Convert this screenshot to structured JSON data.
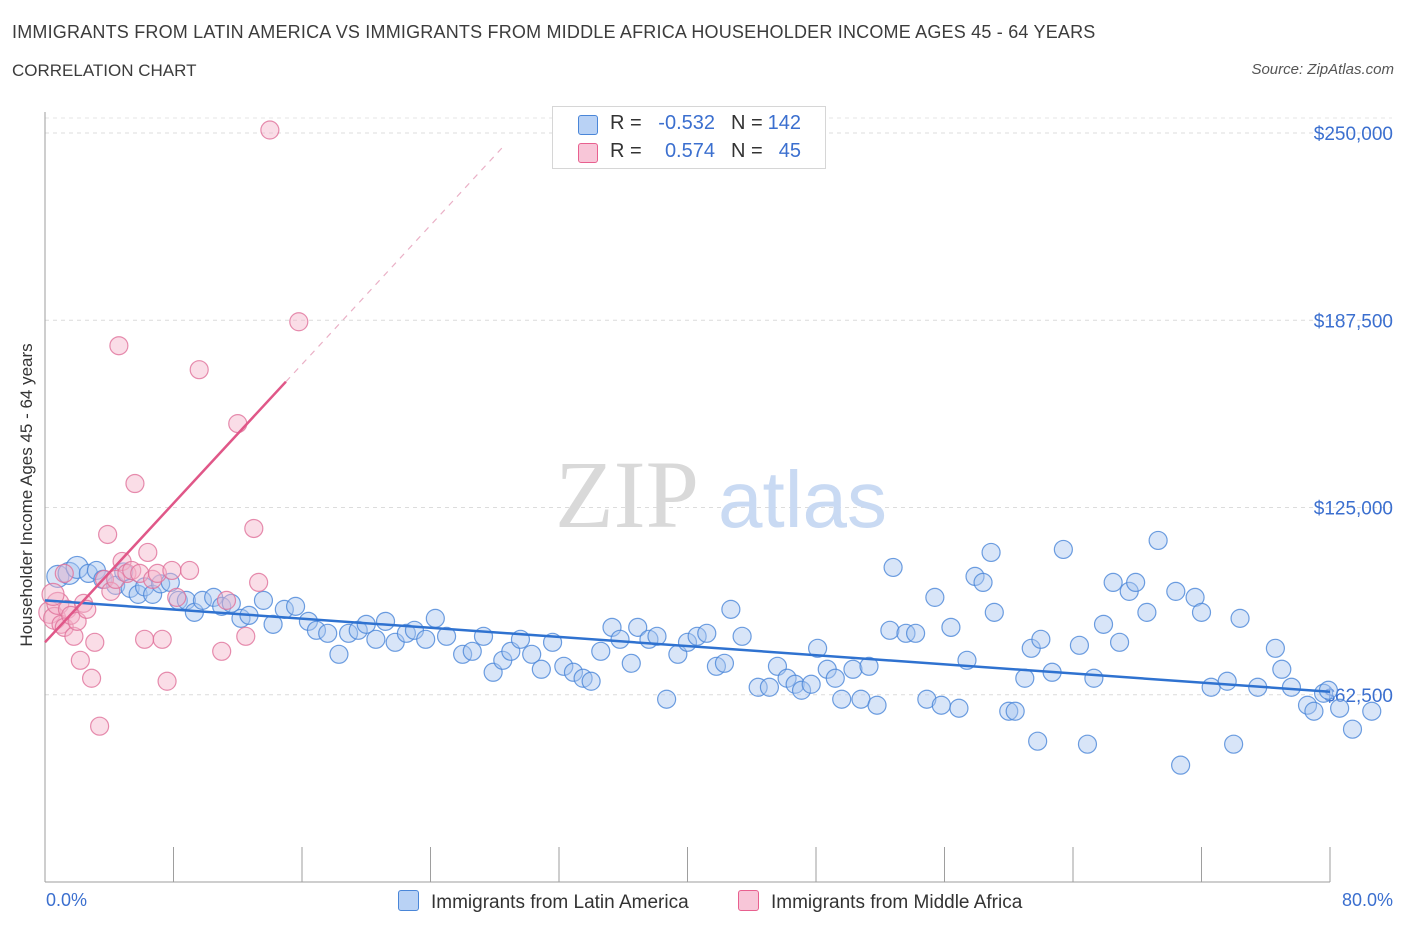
{
  "title": "IMMIGRANTS FROM LATIN AMERICA VS IMMIGRANTS FROM MIDDLE AFRICA HOUSEHOLDER INCOME AGES 45 - 64 YEARS",
  "subtitle": "CORRELATION CHART",
  "source": "Source: ZipAtlas.com",
  "watermark": {
    "zip": "ZIP",
    "atlas": "atlas"
  },
  "legend": {
    "rows": [
      {
        "r_label": "R =",
        "r_value": "-0.532",
        "n_label": "N =",
        "n_value": "142"
      },
      {
        "r_label": "R =",
        "r_value": "0.574",
        "n_label": "N =",
        "n_value": "45"
      }
    ]
  },
  "bottom_legend": {
    "latin": "Immigrants from Latin America",
    "africa": "Immigrants from Middle Africa"
  },
  "chart_data": {
    "type": "scatter",
    "xlabel_min": "0.0%",
    "xlabel_max": "80.0%",
    "ylabel": "Householder Income Ages 45 - 64 years",
    "xlim": [
      0,
      80
    ],
    "ylim": [
      0,
      250000
    ],
    "y_ticks": [
      {
        "value": 62500,
        "label": "$62,500"
      },
      {
        "value": 125000,
        "label": "$125,000"
      },
      {
        "value": 187500,
        "label": "$187,500"
      },
      {
        "value": 250000,
        "label": "$250,000"
      }
    ],
    "grid": "horizontal dashed",
    "colors": {
      "latin": "#4a86d8",
      "latin_fill": "#b3ceF3",
      "africa": "#e8608f",
      "africa_fill": "#f5b9cf",
      "value_text": "#3b6fcf"
    },
    "series": [
      {
        "name": "Immigrants from Latin America",
        "color": "#4a86d8",
        "trend": {
          "x": [
            0,
            80
          ],
          "y": [
            94000,
            63500
          ]
        },
        "points": [
          [
            0.8,
            102000
          ],
          [
            1.5,
            103000
          ],
          [
            2.0,
            105000
          ],
          [
            2.7,
            103000
          ],
          [
            3.2,
            104000
          ],
          [
            3.6,
            101000
          ],
          [
            4.4,
            99000
          ],
          [
            4.9,
            103500
          ],
          [
            5.3,
            98000
          ],
          [
            5.8,
            96000
          ],
          [
            6.2,
            98500
          ],
          [
            6.7,
            96000
          ],
          [
            7.2,
            99500
          ],
          [
            7.8,
            100000
          ],
          [
            8.3,
            94000
          ],
          [
            8.8,
            94000
          ],
          [
            9.3,
            90000
          ],
          [
            9.8,
            94000
          ],
          [
            10.5,
            95000
          ],
          [
            11.0,
            92000
          ],
          [
            11.6,
            93000
          ],
          [
            12.2,
            88000
          ],
          [
            12.7,
            89000
          ],
          [
            13.6,
            94000
          ],
          [
            14.2,
            86000
          ],
          [
            14.9,
            91000
          ],
          [
            15.6,
            92000
          ],
          [
            16.4,
            87000
          ],
          [
            16.9,
            84000
          ],
          [
            17.6,
            83000
          ],
          [
            18.3,
            76000
          ],
          [
            18.9,
            83000
          ],
          [
            19.5,
            84000
          ],
          [
            20.0,
            86000
          ],
          [
            20.6,
            81000
          ],
          [
            21.2,
            87000
          ],
          [
            21.8,
            80000
          ],
          [
            22.5,
            83000
          ],
          [
            23.0,
            84000
          ],
          [
            23.7,
            81000
          ],
          [
            24.3,
            88000
          ],
          [
            25.0,
            82000
          ],
          [
            26.0,
            76000
          ],
          [
            26.6,
            77000
          ],
          [
            27.3,
            82000
          ],
          [
            27.9,
            70000
          ],
          [
            28.5,
            74000
          ],
          [
            29.0,
            77000
          ],
          [
            29.6,
            81000
          ],
          [
            30.3,
            76000
          ],
          [
            30.9,
            71000
          ],
          [
            31.6,
            80000
          ],
          [
            32.3,
            72000
          ],
          [
            32.9,
            70000
          ],
          [
            33.5,
            68000
          ],
          [
            34.0,
            67000
          ],
          [
            34.6,
            77000
          ],
          [
            35.3,
            85000
          ],
          [
            35.8,
            81000
          ],
          [
            36.5,
            73000
          ],
          [
            36.9,
            85000
          ],
          [
            37.6,
            81000
          ],
          [
            38.1,
            82000
          ],
          [
            38.7,
            61000
          ],
          [
            39.4,
            76000
          ],
          [
            40.0,
            80000
          ],
          [
            40.6,
            82000
          ],
          [
            41.2,
            83000
          ],
          [
            41.8,
            72000
          ],
          [
            42.3,
            73000
          ],
          [
            42.7,
            91000
          ],
          [
            43.4,
            82000
          ],
          [
            44.4,
            65000
          ],
          [
            45.1,
            65000
          ],
          [
            45.6,
            72000
          ],
          [
            46.2,
            68000
          ],
          [
            46.7,
            66000
          ],
          [
            47.1,
            64000
          ],
          [
            47.7,
            66000
          ],
          [
            48.1,
            78000
          ],
          [
            48.7,
            71000
          ],
          [
            49.2,
            68000
          ],
          [
            49.6,
            61000
          ],
          [
            50.3,
            71000
          ],
          [
            50.8,
            61000
          ],
          [
            51.3,
            72000
          ],
          [
            51.8,
            59000
          ],
          [
            52.6,
            84000
          ],
          [
            52.8,
            105000
          ],
          [
            53.6,
            83000
          ],
          [
            54.2,
            83000
          ],
          [
            54.9,
            61000
          ],
          [
            55.4,
            95000
          ],
          [
            55.8,
            59000
          ],
          [
            56.4,
            85000
          ],
          [
            56.9,
            58000
          ],
          [
            57.4,
            74000
          ],
          [
            57.9,
            102000
          ],
          [
            58.4,
            100000
          ],
          [
            58.9,
            110000
          ],
          [
            59.1,
            90000
          ],
          [
            60.0,
            57000
          ],
          [
            60.4,
            57000
          ],
          [
            61.0,
            68000
          ],
          [
            61.4,
            78000
          ],
          [
            61.8,
            47000
          ],
          [
            62.0,
            81000
          ],
          [
            62.7,
            70000
          ],
          [
            63.4,
            111000
          ],
          [
            64.4,
            79000
          ],
          [
            64.9,
            46000
          ],
          [
            65.3,
            68000
          ],
          [
            65.9,
            86000
          ],
          [
            66.5,
            100000
          ],
          [
            66.9,
            80000
          ],
          [
            67.5,
            97000
          ],
          [
            67.9,
            100000
          ],
          [
            68.6,
            90000
          ],
          [
            69.3,
            114000
          ],
          [
            70.4,
            97000
          ],
          [
            70.7,
            39000
          ],
          [
            71.6,
            95000
          ],
          [
            72.0,
            90000
          ],
          [
            72.6,
            65000
          ],
          [
            73.6,
            67000
          ],
          [
            74.0,
            46000
          ],
          [
            74.4,
            88000
          ],
          [
            75.5,
            65000
          ],
          [
            76.6,
            78000
          ],
          [
            77.0,
            71000
          ],
          [
            77.6,
            65000
          ],
          [
            78.6,
            59000
          ],
          [
            79.0,
            57000
          ],
          [
            79.6,
            63000
          ],
          [
            79.9,
            64000
          ],
          [
            80.6,
            58000
          ],
          [
            81.4,
            51000
          ],
          [
            82.6,
            57000
          ]
        ]
      },
      {
        "name": "Immigrants from Middle Africa",
        "color": "#e8608f",
        "trend": {
          "x": [
            0,
            15
          ],
          "y": [
            80000,
            167000
          ]
        },
        "points": [
          [
            0.3,
            90000
          ],
          [
            0.6,
            88000
          ],
          [
            0.8,
            93000
          ],
          [
            1.0,
            86000
          ],
          [
            1.2,
            85000
          ],
          [
            1.4,
            91000
          ],
          [
            1.6,
            89000
          ],
          [
            1.8,
            82000
          ],
          [
            2.0,
            87000
          ],
          [
            2.2,
            74000
          ],
          [
            2.4,
            93000
          ],
          [
            2.6,
            91000
          ],
          [
            2.9,
            68000
          ],
          [
            3.1,
            80000
          ],
          [
            3.4,
            52000
          ],
          [
            3.7,
            101000
          ],
          [
            3.9,
            116000
          ],
          [
            4.1,
            97000
          ],
          [
            4.4,
            101000
          ],
          [
            4.6,
            179000
          ],
          [
            4.8,
            107000
          ],
          [
            5.1,
            103000
          ],
          [
            5.4,
            104000
          ],
          [
            5.6,
            133000
          ],
          [
            5.9,
            103000
          ],
          [
            6.2,
            81000
          ],
          [
            6.4,
            110000
          ],
          [
            6.7,
            101000
          ],
          [
            7.0,
            103000
          ],
          [
            7.3,
            81000
          ],
          [
            7.6,
            67000
          ],
          [
            7.9,
            104000
          ],
          [
            8.2,
            95000
          ],
          [
            9.0,
            104000
          ],
          [
            9.6,
            171000
          ],
          [
            11.0,
            77000
          ],
          [
            11.3,
            94000
          ],
          [
            12.0,
            153000
          ],
          [
            12.5,
            82000
          ],
          [
            13.0,
            118000
          ],
          [
            13.3,
            100000
          ],
          [
            14.0,
            251000
          ],
          [
            15.8,
            187000
          ],
          [
            1.2,
            103000
          ],
          [
            0.5,
            96000
          ]
        ]
      }
    ]
  }
}
